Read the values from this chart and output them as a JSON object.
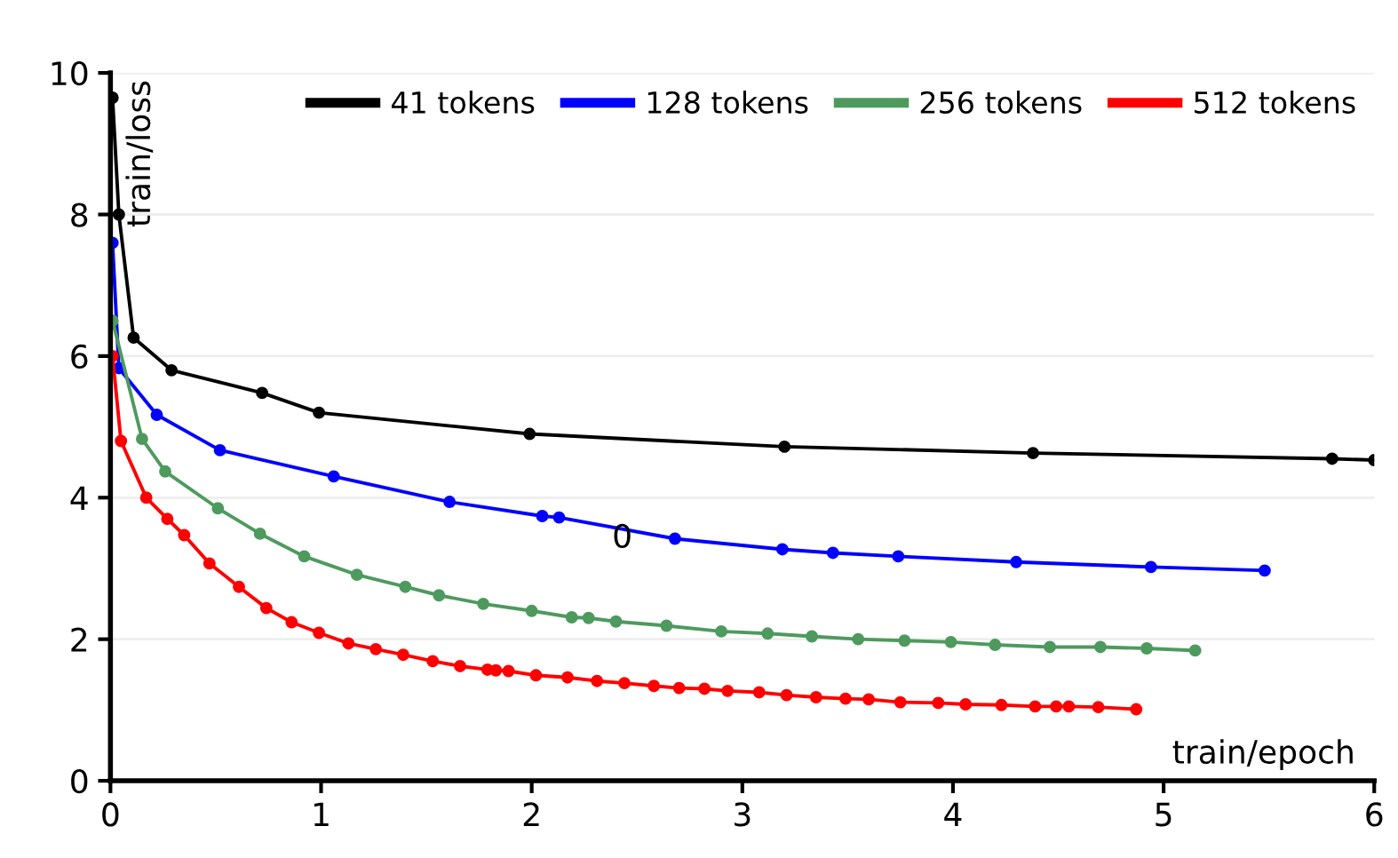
{
  "chart_data": {
    "type": "line",
    "xlabel": "train/epoch",
    "ylabel": "train/loss",
    "xlim": [
      0,
      6
    ],
    "ylim": [
      0,
      10
    ],
    "xticks": [
      0,
      1,
      2,
      3,
      4,
      5,
      6
    ],
    "yticks": [
      0,
      2,
      4,
      6,
      8,
      10
    ],
    "grid": "y",
    "legend": "top right",
    "marker": "circle",
    "line_style": "solid",
    "annotations": [
      {
        "text": "0",
        "x": 2.43,
        "y": 3.42
      }
    ],
    "series": [
      {
        "name": "41 tokens",
        "color": "#000000",
        "x": [
          0.01,
          0.04,
          0.11,
          0.29,
          0.72,
          0.99,
          1.99,
          3.2,
          4.38,
          5.8,
          6.0
        ],
        "values": [
          9.65,
          8.0,
          6.26,
          5.8,
          5.48,
          5.2,
          4.9,
          4.72,
          4.63,
          4.55,
          4.53
        ]
      },
      {
        "name": "128 tokens",
        "color": "#0000ff",
        "x": [
          0.01,
          0.04,
          0.22,
          0.52,
          1.06,
          1.61,
          2.05,
          2.13,
          2.68,
          3.19,
          3.43,
          3.74,
          4.3,
          4.94,
          5.48
        ],
        "values": [
          7.6,
          5.83,
          5.17,
          4.67,
          4.3,
          3.94,
          3.74,
          3.72,
          3.42,
          3.27,
          3.22,
          3.17,
          3.09,
          3.02,
          2.97
        ]
      },
      {
        "name": "256 tokens",
        "color": "#4e9a5e",
        "x": [
          0.01,
          0.15,
          0.26,
          0.51,
          0.71,
          0.92,
          1.17,
          1.4,
          1.56,
          1.77,
          2.0,
          2.19,
          2.27,
          2.4,
          2.64,
          2.9,
          3.12,
          3.33,
          3.55,
          3.77,
          3.99,
          4.2,
          4.46,
          4.7,
          4.92,
          5.15
        ],
        "values": [
          6.5,
          4.83,
          4.37,
          3.85,
          3.49,
          3.17,
          2.91,
          2.74,
          2.62,
          2.5,
          2.4,
          2.31,
          2.3,
          2.25,
          2.19,
          2.11,
          2.08,
          2.04,
          2.0,
          1.98,
          1.96,
          1.92,
          1.89,
          1.89,
          1.87,
          1.84
        ]
      },
      {
        "name": "512 tokens",
        "color": "#ff0000",
        "x": [
          0.01,
          0.05,
          0.17,
          0.27,
          0.35,
          0.47,
          0.61,
          0.74,
          0.86,
          0.99,
          1.13,
          1.26,
          1.39,
          1.53,
          1.66,
          1.79,
          1.83,
          1.89,
          2.02,
          2.17,
          2.31,
          2.44,
          2.58,
          2.7,
          2.82,
          2.93,
          3.08,
          3.21,
          3.35,
          3.49,
          3.6,
          3.75,
          3.93,
          4.06,
          4.23,
          4.39,
          4.49,
          4.55,
          4.69,
          4.87
        ],
        "values": [
          6.0,
          4.8,
          4.0,
          3.7,
          3.47,
          3.07,
          2.74,
          2.44,
          2.24,
          2.09,
          1.94,
          1.86,
          1.78,
          1.69,
          1.62,
          1.57,
          1.56,
          1.55,
          1.49,
          1.46,
          1.41,
          1.38,
          1.34,
          1.31,
          1.3,
          1.27,
          1.25,
          1.21,
          1.18,
          1.16,
          1.15,
          1.11,
          1.1,
          1.08,
          1.07,
          1.05,
          1.05,
          1.05,
          1.04,
          1.01
        ]
      }
    ]
  }
}
